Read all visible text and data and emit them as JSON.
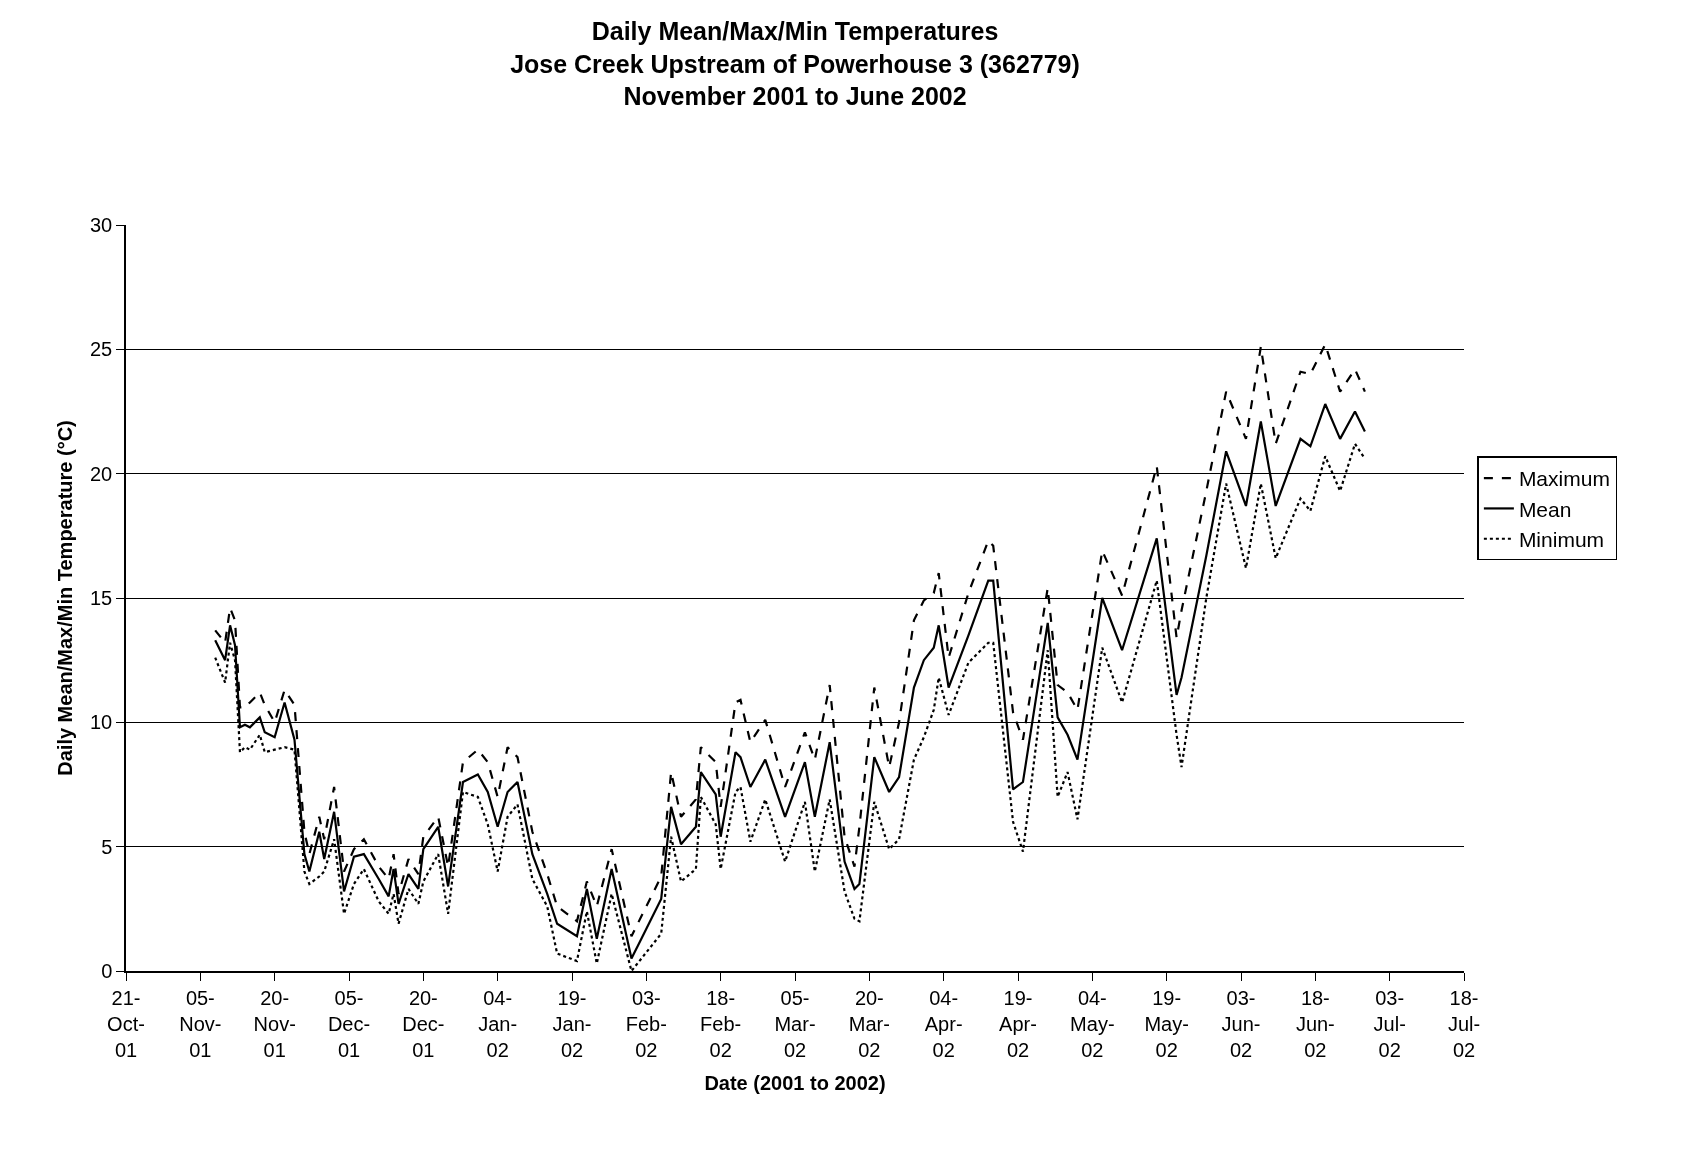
{
  "chart_data": {
    "type": "line",
    "title": "Daily Mean/Max/Min Temperatures\nJose Creek Upstream of Powerhouse 3 (362779)\nNovember 2001 to June 2002",
    "xlabel": "Date (2001 to 2002)",
    "ylabel": "Daily Mean/Max/Min Temperature (°C)",
    "x": [
      "2001-11-08",
      "2001-11-10",
      "2001-11-11",
      "2001-11-12",
      "2001-11-13",
      "2001-11-14",
      "2001-11-15",
      "2001-11-17",
      "2001-11-18",
      "2001-11-20",
      "2001-11-22",
      "2001-11-24",
      "2001-11-26",
      "2001-11-27",
      "2001-11-29",
      "2001-11-30",
      "2001-12-02",
      "2001-12-04",
      "2001-12-06",
      "2001-12-08",
      "2001-12-11",
      "2001-12-13",
      "2001-12-14",
      "2001-12-15",
      "2001-12-17",
      "2001-12-19",
      "2001-12-20",
      "2001-12-23",
      "2001-12-25",
      "2001-12-28",
      "2001-12-31",
      "2002-01-02",
      "2002-01-04",
      "2002-01-06",
      "2002-01-08",
      "2002-01-11",
      "2002-01-14",
      "2002-01-16",
      "2002-01-20",
      "2002-01-22",
      "2002-01-24",
      "2002-01-27",
      "2002-01-31",
      "2002-02-02",
      "2002-02-06",
      "2002-02-08",
      "2002-02-10",
      "2002-02-13",
      "2002-02-14",
      "2002-02-17",
      "2002-02-18",
      "2002-02-21",
      "2002-02-22",
      "2002-02-24",
      "2002-02-27",
      "2002-03-03",
      "2002-03-07",
      "2002-03-09",
      "2002-03-12",
      "2002-03-15",
      "2002-03-17",
      "2002-03-18",
      "2002-03-21",
      "2002-03-24",
      "2002-03-26",
      "2002-03-29",
      "2002-03-31",
      "2002-04-02",
      "2002-04-03",
      "2002-04-05",
      "2002-04-09",
      "2002-04-13",
      "2002-04-14",
      "2002-04-18",
      "2002-04-20",
      "2002-04-25",
      "2002-04-27",
      "2002-04-29",
      "2002-05-01",
      "2002-05-06",
      "2002-05-10",
      "2002-05-17",
      "2002-05-21",
      "2002-05-22",
      "2002-05-27",
      "2002-05-31",
      "2002-06-04",
      "2002-06-07",
      "2002-06-10",
      "2002-06-15",
      "2002-06-17",
      "2002-06-20",
      "2002-06-23",
      "2002-06-26",
      "2002-06-28"
    ],
    "series": [
      {
        "name": "Maximum",
        "color": "#000000",
        "line_style": "dashed",
        "values": [
          13.7,
          13.2,
          14.6,
          14.1,
          10.6,
          10.6,
          10.8,
          11.2,
          10.7,
          10.0,
          11.3,
          10.7,
          5.6,
          4.7,
          6.2,
          5.3,
          7.4,
          4.0,
          4.9,
          5.3,
          4.2,
          3.7,
          4.7,
          3.1,
          4.5,
          3.9,
          5.4,
          6.2,
          4.2,
          8.4,
          8.9,
          8.4,
          7.0,
          9.0,
          8.6,
          5.6,
          3.9,
          2.6,
          2.0,
          3.6,
          2.6,
          4.9,
          1.4,
          2.2,
          3.8,
          8.0,
          6.2,
          6.9,
          9.0,
          8.4,
          6.6,
          10.8,
          10.9,
          9.2,
          10.1,
          7.4,
          9.6,
          8.5,
          11.5,
          5.4,
          4.2,
          5.8,
          11.4,
          8.2,
          10.0,
          14.1,
          14.9,
          15.2,
          16.0,
          12.6,
          15.2,
          17.3,
          17.1,
          10.4,
          9.3,
          15.4,
          11.5,
          11.2,
          10.5,
          16.9,
          15.1,
          20.3,
          13.4,
          14.5,
          19.3,
          23.3,
          21.4,
          25.1,
          21.2,
          24.1,
          24.0,
          25.2,
          23.3,
          24.2,
          23.3
        ]
      },
      {
        "name": "Mean",
        "color": "#000000",
        "line_style": "solid",
        "values": [
          13.3,
          12.5,
          13.9,
          13.1,
          9.8,
          9.9,
          9.8,
          10.2,
          9.6,
          9.4,
          10.8,
          9.3,
          4.7,
          4.0,
          5.6,
          4.5,
          6.4,
          3.2,
          4.6,
          4.7,
          3.7,
          3.0,
          4.1,
          2.7,
          3.9,
          3.3,
          4.9,
          5.8,
          3.4,
          7.6,
          7.9,
          7.2,
          5.8,
          7.2,
          7.6,
          4.7,
          3.1,
          1.9,
          1.4,
          3.3,
          1.3,
          4.1,
          0.5,
          1.3,
          2.9,
          6.6,
          5.1,
          5.8,
          8.0,
          7.1,
          5.4,
          8.8,
          8.6,
          7.4,
          8.5,
          6.2,
          8.4,
          6.2,
          9.2,
          4.4,
          3.3,
          3.5,
          8.6,
          7.2,
          7.8,
          11.4,
          12.5,
          13.0,
          13.9,
          11.4,
          13.5,
          15.7,
          15.7,
          7.3,
          7.6,
          14.0,
          10.2,
          9.5,
          8.5,
          15.0,
          12.9,
          17.4,
          11.1,
          11.8,
          16.7,
          20.9,
          18.7,
          22.1,
          18.7,
          21.4,
          21.1,
          22.8,
          21.4,
          22.5,
          21.7
        ]
      },
      {
        "name": "Minimum",
        "color": "#000000",
        "line_style": "dotted",
        "values": [
          12.6,
          11.6,
          13.2,
          12.5,
          8.8,
          9.0,
          8.9,
          9.5,
          8.8,
          8.9,
          9.0,
          8.9,
          4.0,
          3.5,
          3.8,
          4.0,
          5.3,
          2.3,
          3.5,
          4.1,
          2.8,
          2.3,
          3.1,
          1.9,
          3.3,
          2.7,
          3.6,
          4.7,
          2.3,
          7.2,
          7.0,
          5.9,
          4.0,
          6.2,
          6.7,
          3.7,
          2.6,
          0.7,
          0.4,
          2.4,
          0.3,
          3.1,
          0.0,
          0.5,
          1.5,
          5.4,
          3.6,
          4.1,
          7.0,
          5.9,
          4.1,
          7.2,
          7.4,
          5.2,
          6.9,
          4.4,
          6.8,
          4.0,
          6.9,
          3.2,
          2.1,
          2.0,
          6.8,
          4.9,
          5.3,
          8.5,
          9.4,
          10.5,
          11.8,
          10.3,
          12.4,
          13.2,
          13.2,
          6.0,
          4.8,
          12.9,
          7.0,
          8.0,
          6.1,
          13.0,
          10.8,
          15.7,
          9.5,
          8.2,
          15.0,
          19.6,
          16.2,
          19.6,
          16.6,
          19.0,
          18.5,
          20.7,
          19.3,
          21.2,
          20.6
        ]
      }
    ],
    "xlim": [
      "2001-10-21",
      "2002-07-18"
    ],
    "xticks": [
      {
        "value": "2001-10-21",
        "label": "21-Oct-01"
      },
      {
        "value": "2001-11-05",
        "label": "05-Nov-01"
      },
      {
        "value": "2001-11-20",
        "label": "20-Nov-01"
      },
      {
        "value": "2001-12-05",
        "label": "05-Dec-01"
      },
      {
        "value": "2001-12-20",
        "label": "20-Dec-01"
      },
      {
        "value": "2002-01-04",
        "label": "04-Jan-02"
      },
      {
        "value": "2002-01-19",
        "label": "19-Jan-02"
      },
      {
        "value": "2002-02-03",
        "label": "03-Feb-02"
      },
      {
        "value": "2002-02-18",
        "label": "18-Feb-02"
      },
      {
        "value": "2002-03-05",
        "label": "05-Mar-02"
      },
      {
        "value": "2002-03-20",
        "label": "20-Mar-02"
      },
      {
        "value": "2002-04-04",
        "label": "04-Apr-02"
      },
      {
        "value": "2002-04-19",
        "label": "19-Apr-02"
      },
      {
        "value": "2002-05-04",
        "label": "04-May-02"
      },
      {
        "value": "2002-05-19",
        "label": "19-May-02"
      },
      {
        "value": "2002-06-03",
        "label": "03-Jun-02"
      },
      {
        "value": "2002-06-18",
        "label": "18-Jun-02"
      },
      {
        "value": "2002-07-03",
        "label": "03-Jul-02"
      },
      {
        "value": "2002-07-18",
        "label": "18-Jul-02"
      }
    ],
    "ylim": [
      0,
      30
    ],
    "yticks": [
      0,
      5,
      10,
      15,
      20,
      25,
      30
    ],
    "grid": "y",
    "legend": "right"
  }
}
